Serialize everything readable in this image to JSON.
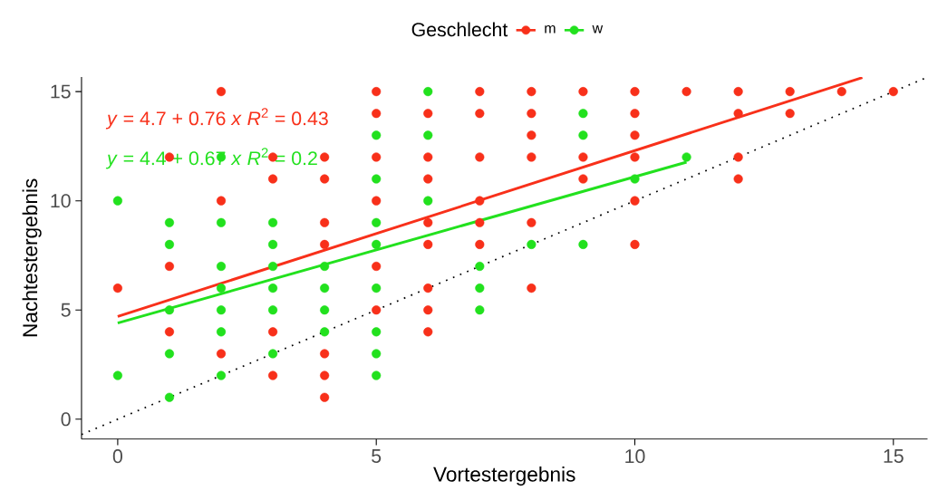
{
  "chart_data": {
    "type": "scatter",
    "xlabel": "Vortestergebnis",
    "ylabel": "Nachtestergebnis",
    "legend_title": "Geschlecht",
    "legend": "top",
    "marker": "circle",
    "grid": false,
    "xlim": [
      -0.7,
      15.66
    ],
    "ylim": [
      -0.91,
      15.67
    ],
    "xticks": [
      0,
      5,
      10,
      15
    ],
    "yticks": [
      0,
      5,
      10,
      15
    ],
    "series": [
      {
        "name": "m",
        "color": "#f8301a",
        "x": [
          0,
          1,
          1,
          1,
          2,
          2,
          2,
          3,
          3,
          3,
          3,
          4,
          4,
          4,
          4,
          4,
          4,
          4,
          5,
          5,
          5,
          5,
          5,
          5,
          6,
          6,
          6,
          6,
          6,
          6,
          6,
          6,
          7,
          7,
          7,
          7,
          7,
          7,
          8,
          8,
          8,
          8,
          8,
          8,
          9,
          9,
          9,
          10,
          10,
          10,
          10,
          10,
          10,
          11,
          12,
          12,
          12,
          12,
          13,
          13,
          14,
          15
        ],
        "values": [
          6,
          12,
          7,
          4,
          15,
          10,
          3,
          12,
          11,
          4,
          2,
          12,
          11,
          9,
          8,
          3,
          2,
          1,
          15,
          14,
          12,
          10,
          7,
          5,
          14,
          12,
          11,
          9,
          8,
          6,
          5,
          4,
          15,
          14,
          12,
          10,
          9,
          8,
          15,
          14,
          13,
          12,
          9,
          6,
          15,
          12,
          11,
          15,
          14,
          13,
          12,
          10,
          8,
          15,
          15,
          14,
          12,
          11,
          15,
          14,
          15,
          15
        ]
      },
      {
        "name": "w",
        "color": "#22e11e",
        "x": [
          0,
          0,
          1,
          1,
          1,
          1,
          1,
          2,
          2,
          2,
          2,
          2,
          2,
          2,
          3,
          3,
          3,
          3,
          3,
          3,
          4,
          4,
          4,
          4,
          5,
          5,
          5,
          5,
          5,
          5,
          5,
          5,
          6,
          6,
          6,
          7,
          7,
          7,
          8,
          9,
          9,
          9,
          10,
          11
        ],
        "values": [
          10,
          2,
          9,
          8,
          5,
          3,
          1,
          12,
          9,
          7,
          6,
          5,
          4,
          2,
          9,
          8,
          7,
          6,
          5,
          3,
          7,
          6,
          5,
          4,
          13,
          11,
          9,
          8,
          6,
          4,
          3,
          2,
          15,
          13,
          10,
          7,
          6,
          5,
          8,
          14,
          13,
          8,
          11,
          12
        ]
      },
      {
        "type": "line",
        "color": "#f8301a",
        "line_style": "solid",
        "marker": "none",
        "x": [
          0,
          14.4
        ],
        "values": [
          4.7,
          15.64
        ]
      },
      {
        "type": "line",
        "color": "#22e11e",
        "line_style": "solid",
        "marker": "none",
        "x": [
          0,
          11
        ],
        "values": [
          4.4,
          11.77
        ]
      },
      {
        "type": "line",
        "color": "#000000",
        "line_style": "dotted",
        "marker": "none",
        "x": [
          -0.7,
          15.66
        ],
        "values": [
          -0.7,
          15.66
        ]
      }
    ],
    "annotations": [
      "*y* = 4.7 + 0.76 *x*   *R*$^{2}$ = 0.43",
      "*y* = 4.4 + 0.67 *x*   *R*$^{2}$ = 0.2"
    ]
  }
}
